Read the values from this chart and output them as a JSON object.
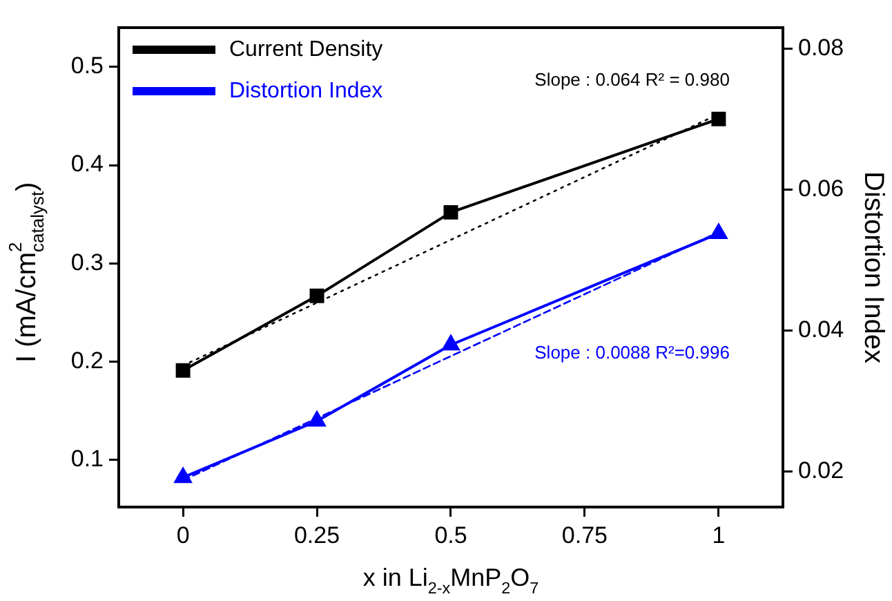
{
  "chart_data": {
    "type": "line",
    "xlabel": "x in Li$_{2-x}$MnP$_{2}$O$_{7}$",
    "ylabel": "I (mA/cm$^{2}$$_{catalyst}$)",
    "y2label": "Distortion Index",
    "x": [
      0,
      0.25,
      0.5,
      1
    ],
    "xlim": [
      -0.12,
      1.12
    ],
    "xticks": [
      0,
      0.25,
      0.5,
      0.75,
      1
    ],
    "ylim": [
      0.052,
      0.54
    ],
    "yticks": [
      0.1,
      0.2,
      0.3,
      0.4,
      0.5
    ],
    "y2lim": [
      0.015,
      0.083
    ],
    "y2ticks": [
      0.02,
      0.04,
      0.06,
      0.08
    ],
    "grid": false,
    "legend": "top left",
    "series": [
      {
        "name": "Current Density",
        "color": "#000000",
        "values": [
          0.191,
          0.267,
          0.352,
          0.447
        ],
        "marker": "square",
        "line_style": "solid"
      },
      {
        "name": "Distortion Index",
        "color": "#0000ff",
        "values": [
          0.0192,
          0.0272,
          0.038,
          0.0538
        ],
        "axis": "y2",
        "marker": "triangle",
        "line_style": "solid"
      },
      {
        "color": "#000000",
        "values": [
          0.196,
          0.26,
          0.324,
          0.452
        ],
        "marker": "none",
        "line_style": "dotted"
      },
      {
        "color": "#0000ff",
        "values": [
          0.0188,
          0.0276,
          0.0364,
          0.054
        ],
        "axis": "y2",
        "marker": "none",
        "line_style": "dashed"
      }
    ],
    "annotations": [
      "Slope : 0.064 R² = 0.980",
      "Slope : 0.0088 R²=0.996"
    ]
  }
}
